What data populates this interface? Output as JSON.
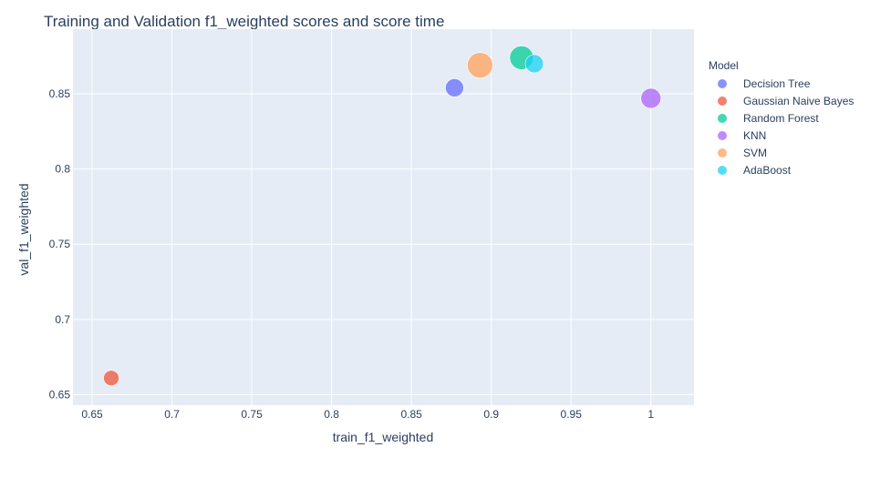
{
  "chart_data": {
    "type": "scatter",
    "title": "Training and Validation f1_weighted scores and score time",
    "xlabel": "train_f1_weighted",
    "ylabel": "val_f1_weighted",
    "xlim": [
      0.638,
      1.027
    ],
    "ylim": [
      0.643,
      0.893
    ],
    "xticks": [
      0.65,
      0.7,
      0.75,
      0.8,
      0.85,
      0.9,
      0.95,
      1
    ],
    "xtick_labels": [
      "0.65",
      "0.7",
      "0.75",
      "0.8",
      "0.85",
      "0.9",
      "0.95",
      "1"
    ],
    "yticks": [
      0.65,
      0.7,
      0.75,
      0.8,
      0.85
    ],
    "ytick_labels": [
      "0.65",
      "0.7",
      "0.75",
      "0.8",
      "0.85"
    ],
    "grid": true,
    "marker_size_encodes": "score time",
    "legend": {
      "title": "Model",
      "placement": "right"
    },
    "series": [
      {
        "name": "Decision Tree",
        "color": "#636efa",
        "x": [
          0.877
        ],
        "y": [
          0.854
        ],
        "size": [
          10
        ]
      },
      {
        "name": "Gaussian Naive Bayes",
        "color": "#EF553B",
        "x": [
          0.662
        ],
        "y": [
          0.661
        ],
        "size": [
          8.5
        ]
      },
      {
        "name": "Random Forest",
        "color": "#00cc96",
        "x": [
          0.919
        ],
        "y": [
          0.874
        ],
        "size": [
          13
        ]
      },
      {
        "name": "KNN",
        "color": "#ab63fa",
        "x": [
          1.0
        ],
        "y": [
          0.847
        ],
        "size": [
          11
        ]
      },
      {
        "name": "SVM",
        "color": "#FFA15A",
        "x": [
          0.893
        ],
        "y": [
          0.869
        ],
        "size": [
          14
        ]
      },
      {
        "name": "AdaBoost",
        "color": "#19d3f3",
        "x": [
          0.927
        ],
        "y": [
          0.87
        ],
        "size": [
          10
        ]
      }
    ]
  }
}
